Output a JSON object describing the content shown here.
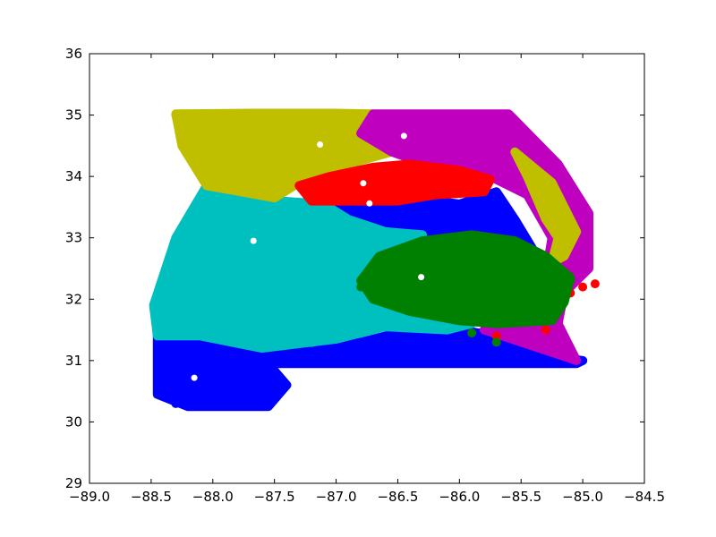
{
  "chart_data": {
    "type": "scatter",
    "title": "",
    "xlabel": "",
    "ylabel": "",
    "xlim": [
      -89.0,
      -84.5
    ],
    "ylim": [
      29,
      36
    ],
    "grid": false,
    "legend": "none",
    "xticks": [
      -89.0,
      -88.5,
      -88.0,
      -87.5,
      -87.0,
      -86.5,
      -86.0,
      -85.5,
      -85.0,
      -84.5
    ],
    "xtick_labels": [
      "−89.0",
      "−88.5",
      "−88.0",
      "−87.5",
      "−87.0",
      "−86.5",
      "−86.0",
      "−85.5",
      "−85.0",
      "−84.5"
    ],
    "yticks": [
      29,
      30,
      31,
      32,
      33,
      34,
      35,
      36
    ],
    "ytick_labels": [
      "29",
      "30",
      "31",
      "32",
      "33",
      "34",
      "35",
      "36"
    ],
    "clusters": [
      {
        "color": "#0000ff",
        "region": [
          [
            -88.45,
            31.45
          ],
          [
            -88.45,
            30.45
          ],
          [
            -88.2,
            30.25
          ],
          [
            -87.55,
            30.25
          ],
          [
            -87.4,
            30.6
          ],
          [
            -87.55,
            30.95
          ],
          [
            -85.05,
            30.95
          ],
          [
            -85.0,
            31.0
          ],
          [
            -85.3,
            31.1
          ],
          [
            -85.45,
            31.35
          ],
          [
            -85.85,
            31.45
          ],
          [
            -86.1,
            31.55
          ],
          [
            -86.3,
            31.55
          ],
          [
            -86.8,
            31.3
          ],
          [
            -87.2,
            31.15
          ],
          [
            -87.7,
            31.2
          ],
          [
            -88.1,
            31.4
          ]
        ],
        "points": [
          [
            -88.3,
            30.3
          ],
          [
            -87.5,
            30.4
          ],
          [
            -87.4,
            30.6
          ],
          [
            -85.1,
            31.0
          ],
          [
            -85.0,
            31.0
          ],
          [
            -85.7,
            31.0
          ],
          [
            -86.2,
            31.0
          ],
          [
            -87.0,
            31.0
          ],
          [
            -88.4,
            31.4
          ]
        ]
      },
      {
        "color": "#0000ff",
        "region": [
          [
            -87.1,
            33.45
          ],
          [
            -86.8,
            33.7
          ],
          [
            -86.4,
            33.65
          ],
          [
            -86.0,
            33.55
          ],
          [
            -85.7,
            33.75
          ],
          [
            -85.55,
            33.3
          ],
          [
            -85.4,
            32.8
          ],
          [
            -85.6,
            32.85
          ],
          [
            -86.1,
            33.05
          ],
          [
            -86.6,
            33.05
          ],
          [
            -86.9,
            33.2
          ]
        ],
        "points": [
          [
            -85.6,
            33.4
          ],
          [
            -85.5,
            33.0
          ],
          [
            -86.0,
            33.55
          ],
          [
            -86.8,
            33.65
          ]
        ]
      },
      {
        "color": "#00bfbf",
        "region": [
          [
            -88.05,
            33.85
          ],
          [
            -87.45,
            33.6
          ],
          [
            -87.1,
            33.55
          ],
          [
            -86.9,
            33.3
          ],
          [
            -86.6,
            33.1
          ],
          [
            -86.3,
            33.05
          ],
          [
            -86.5,
            32.85
          ],
          [
            -86.7,
            32.4
          ],
          [
            -86.55,
            32.0
          ],
          [
            -86.1,
            31.7
          ],
          [
            -85.9,
            31.6
          ],
          [
            -86.1,
            31.5
          ],
          [
            -86.6,
            31.55
          ],
          [
            -87.0,
            31.35
          ],
          [
            -87.6,
            31.2
          ],
          [
            -88.1,
            31.4
          ],
          [
            -88.45,
            31.4
          ],
          [
            -88.48,
            31.9
          ],
          [
            -88.3,
            33.0
          ]
        ],
        "points": [
          [
            -88.45,
            31.8
          ],
          [
            -88.3,
            32.6
          ],
          [
            -88.0,
            33.8
          ],
          [
            -86.3,
            31.55
          ],
          [
            -87.3,
            31.3
          ]
        ]
      },
      {
        "color": "#bfbf00",
        "region": [
          [
            -88.3,
            35.02
          ],
          [
            -87.7,
            35.03
          ],
          [
            -87.0,
            35.03
          ],
          [
            -86.7,
            35.02
          ],
          [
            -86.8,
            34.7
          ],
          [
            -86.55,
            34.4
          ],
          [
            -86.9,
            34.2
          ],
          [
            -87.3,
            33.9
          ],
          [
            -87.5,
            33.65
          ],
          [
            -88.05,
            33.85
          ],
          [
            -88.25,
            34.5
          ]
        ],
        "points": [
          [
            -88.3,
            35.0
          ],
          [
            -87.5,
            35.0
          ],
          [
            -86.8,
            35.0
          ],
          [
            -87.5,
            33.65
          ],
          [
            -88.0,
            33.85
          ]
        ]
      },
      {
        "color": "#bf00bf",
        "region": [
          [
            -86.7,
            35.02
          ],
          [
            -86.1,
            35.02
          ],
          [
            -85.6,
            35.02
          ],
          [
            -85.2,
            34.2
          ],
          [
            -84.95,
            33.4
          ],
          [
            -84.95,
            32.5
          ],
          [
            -85.15,
            32.1
          ],
          [
            -85.2,
            31.6
          ],
          [
            -85.05,
            31.0
          ],
          [
            -85.35,
            31.2
          ],
          [
            -85.8,
            31.5
          ],
          [
            -85.5,
            31.65
          ],
          [
            -85.3,
            32.4
          ],
          [
            -85.25,
            33.0
          ],
          [
            -85.45,
            33.7
          ],
          [
            -85.75,
            34.0
          ],
          [
            -86.2,
            34.15
          ],
          [
            -86.55,
            34.4
          ],
          [
            -86.8,
            34.7
          ]
        ],
        "points": [
          [
            -85.6,
            35.0
          ],
          [
            -85.0,
            32.5
          ],
          [
            -85.2,
            31.5
          ],
          [
            -86.6,
            34.9
          ]
        ]
      },
      {
        "color": "#bfbf00",
        "region": [
          [
            -85.55,
            34.4
          ],
          [
            -85.45,
            34.0
          ],
          [
            -85.3,
            33.3
          ],
          [
            -85.2,
            33.0
          ],
          [
            -85.25,
            32.6
          ],
          [
            -85.15,
            32.7
          ],
          [
            -85.05,
            33.1
          ],
          [
            -85.25,
            33.9
          ]
        ],
        "points": [
          [
            -85.5,
            34.2
          ],
          [
            -85.2,
            32.8
          ]
        ]
      },
      {
        "color": "#ff0000",
        "region": [
          [
            -87.3,
            33.85
          ],
          [
            -87.05,
            34.0
          ],
          [
            -86.7,
            34.15
          ],
          [
            -86.4,
            34.2
          ],
          [
            -86.0,
            34.1
          ],
          [
            -85.75,
            33.95
          ],
          [
            -85.8,
            33.75
          ],
          [
            -86.2,
            33.7
          ],
          [
            -86.5,
            33.6
          ],
          [
            -86.9,
            33.6
          ],
          [
            -87.2,
            33.6
          ]
        ],
        "points": [
          [
            -87.25,
            33.8
          ],
          [
            -85.8,
            33.9
          ],
          [
            -84.9,
            32.25
          ],
          [
            -85.0,
            32.2
          ],
          [
            -85.1,
            32.1
          ],
          [
            -85.3,
            31.5
          ],
          [
            -85.7,
            31.4
          ]
        ]
      },
      {
        "color": "#008000",
        "region": [
          [
            -86.8,
            32.3
          ],
          [
            -86.65,
            32.7
          ],
          [
            -86.3,
            32.95
          ],
          [
            -85.9,
            33.05
          ],
          [
            -85.55,
            32.95
          ],
          [
            -85.3,
            32.7
          ],
          [
            -85.1,
            32.35
          ],
          [
            -85.15,
            31.95
          ],
          [
            -85.25,
            31.65
          ],
          [
            -85.7,
            31.6
          ],
          [
            -86.0,
            31.65
          ],
          [
            -86.4,
            31.8
          ],
          [
            -86.7,
            32.0
          ]
        ],
        "points": [
          [
            -86.8,
            32.2
          ],
          [
            -85.1,
            32.3
          ],
          [
            -85.7,
            31.3
          ],
          [
            -85.9,
            31.45
          ]
        ]
      }
    ],
    "centroids": {
      "color": "#ffffff",
      "points": [
        [
          -88.15,
          30.72
        ],
        [
          -87.67,
          32.95
        ],
        [
          -87.13,
          34.52
        ],
        [
          -86.45,
          34.66
        ],
        [
          -86.78,
          33.89
        ],
        [
          -86.73,
          33.56
        ],
        [
          -86.31,
          32.36
        ]
      ]
    }
  }
}
